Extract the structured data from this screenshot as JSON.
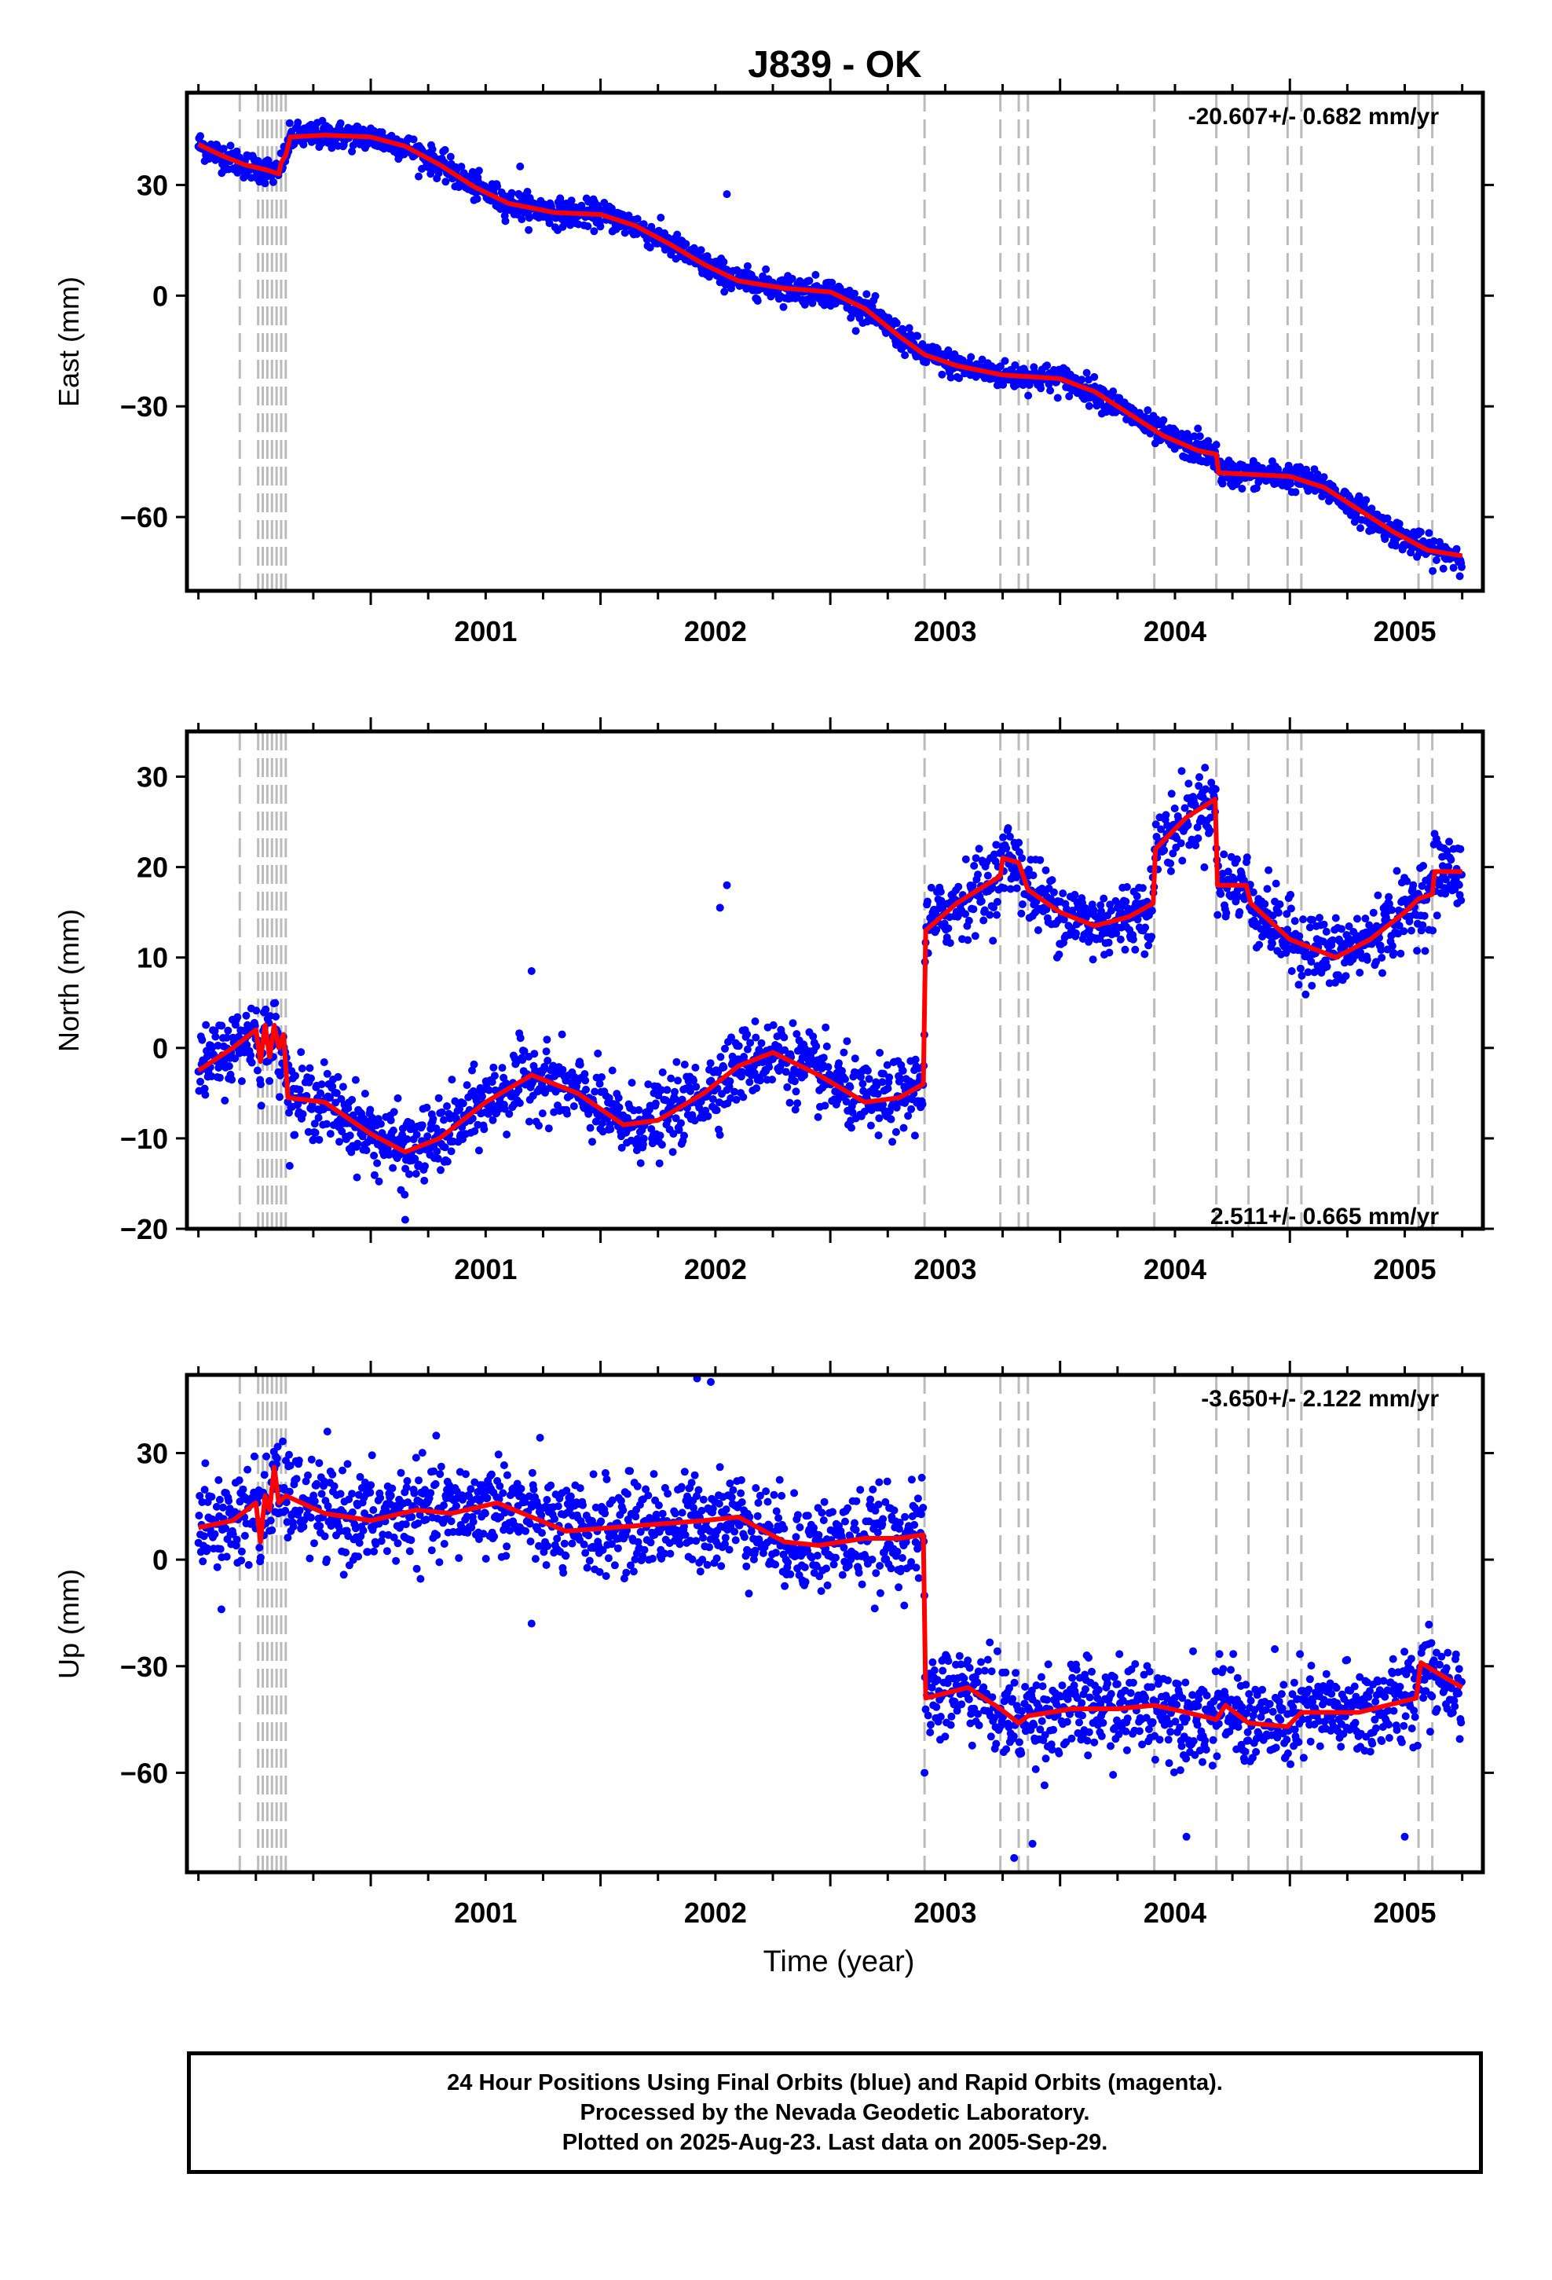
{
  "title": "J839 - OK",
  "xlabel": "Time (year)",
  "colors": {
    "points": "#0000ff",
    "model": "#ff0000",
    "breaks": "#bbbbbb",
    "frame": "#000000"
  },
  "footer": {
    "line1": "24 Hour Positions Using Final Orbits (blue) and Rapid Orbits (magenta).",
    "line2": "Processed by the Nevada Geodetic Laboratory.",
    "line3": "Plotted on 2025-Aug-23. Last data on 2005-Sep-29."
  },
  "chart_data": [
    {
      "type": "scatter",
      "component": "east",
      "ylabel": "East (mm)",
      "rate_label": "-20.607+/- 0.682 mm/yr",
      "xlim": [
        2000.2,
        2005.84
      ],
      "ylim": [
        -80,
        55
      ],
      "yticks": [
        30,
        0,
        -30,
        -60
      ],
      "xticks": [
        2001,
        2002,
        2003,
        2004,
        2005
      ],
      "break_epochs": [
        2000.43,
        2000.51,
        2000.53,
        2000.55,
        2000.57,
        2000.59,
        2000.61,
        2000.63,
        2003.41,
        2003.74,
        2003.82,
        2003.86,
        2004.41,
        2004.68,
        2004.82,
        2004.99,
        2005.05,
        2005.56,
        2005.62
      ],
      "noise_mm": 1.8,
      "model": [
        [
          2000.25,
          41
        ],
        [
          2000.35,
          38
        ],
        [
          2000.45,
          35.5
        ],
        [
          2000.55,
          34
        ],
        [
          2000.6,
          33
        ],
        [
          2000.61,
          36
        ],
        [
          2000.63,
          38
        ],
        [
          2000.65,
          43
        ],
        [
          2000.8,
          43.5
        ],
        [
          2001.0,
          43
        ],
        [
          2001.15,
          40.5
        ],
        [
          2001.3,
          35.5
        ],
        [
          2001.45,
          29.5
        ],
        [
          2001.6,
          25
        ],
        [
          2001.8,
          22.5
        ],
        [
          2002.0,
          22
        ],
        [
          2002.15,
          19
        ],
        [
          2002.3,
          14
        ],
        [
          2002.45,
          8.5
        ],
        [
          2002.6,
          4
        ],
        [
          2002.8,
          2
        ],
        [
          2003.0,
          1
        ],
        [
          2003.15,
          -3.5
        ],
        [
          2003.3,
          -11
        ],
        [
          2003.41,
          -16
        ],
        [
          2003.55,
          -19
        ],
        [
          2003.75,
          -21.5
        ],
        [
          2004.0,
          -22.5
        ],
        [
          2004.15,
          -26
        ],
        [
          2004.3,
          -32
        ],
        [
          2004.45,
          -38
        ],
        [
          2004.6,
          -42
        ],
        [
          2004.68,
          -43
        ],
        [
          2004.69,
          -48
        ],
        [
          2004.85,
          -48.5
        ],
        [
          2005.0,
          -49
        ],
        [
          2005.15,
          -52
        ],
        [
          2005.3,
          -58
        ],
        [
          2005.45,
          -64
        ],
        [
          2005.6,
          -69
        ],
        [
          2005.75,
          -70.5
        ]
      ],
      "outliers": [
        [
          2002.55,
          27.5
        ],
        [
          2001.65,
          35
        ],
        [
          2004.6,
          -36
        ]
      ]
    },
    {
      "type": "scatter",
      "component": "north",
      "ylabel": "North (mm)",
      "rate_label": "2.511+/- 0.665 mm/yr",
      "xlim": [
        2000.2,
        2005.84
      ],
      "ylim": [
        -20,
        35
      ],
      "yticks": [
        30,
        20,
        10,
        0,
        -10,
        -20
      ],
      "xticks": [
        2001,
        2002,
        2003,
        2004,
        2005
      ],
      "break_epochs": [
        2000.43,
        2000.51,
        2000.53,
        2000.55,
        2000.57,
        2000.59,
        2000.61,
        2000.63,
        2003.41,
        2003.74,
        2003.82,
        2003.86,
        2004.41,
        2004.68,
        2004.82,
        2004.99,
        2005.05,
        2005.56,
        2005.62
      ],
      "noise_mm": 2.0,
      "model": [
        [
          2000.25,
          -2.5
        ],
        [
          2000.4,
          0
        ],
        [
          2000.5,
          2
        ],
        [
          2000.52,
          -1.5
        ],
        [
          2000.54,
          2.5
        ],
        [
          2000.56,
          -1
        ],
        [
          2000.58,
          2.5
        ],
        [
          2000.6,
          0
        ],
        [
          2000.62,
          1.5
        ],
        [
          2000.64,
          -5.5
        ],
        [
          2000.8,
          -6
        ],
        [
          2001.0,
          -9.5
        ],
        [
          2001.15,
          -11.5
        ],
        [
          2001.3,
          -10
        ],
        [
          2001.5,
          -6
        ],
        [
          2001.7,
          -3
        ],
        [
          2001.9,
          -5
        ],
        [
          2002.1,
          -8.5
        ],
        [
          2002.25,
          -8
        ],
        [
          2002.45,
          -5
        ],
        [
          2002.6,
          -2
        ],
        [
          2002.75,
          -0.5
        ],
        [
          2002.95,
          -3
        ],
        [
          2003.15,
          -6
        ],
        [
          2003.3,
          -5.5
        ],
        [
          2003.405,
          -4
        ],
        [
          2003.415,
          13
        ],
        [
          2003.55,
          16
        ],
        [
          2003.74,
          19
        ],
        [
          2003.75,
          21
        ],
        [
          2003.82,
          20.5
        ],
        [
          2003.86,
          17.5
        ],
        [
          2004.0,
          15
        ],
        [
          2004.15,
          13.5
        ],
        [
          2004.3,
          14.5
        ],
        [
          2004.405,
          16
        ],
        [
          2004.415,
          22
        ],
        [
          2004.55,
          25.5
        ],
        [
          2004.675,
          27.5
        ],
        [
          2004.685,
          18
        ],
        [
          2004.81,
          18
        ],
        [
          2004.83,
          16
        ],
        [
          2005.0,
          12
        ],
        [
          2005.2,
          10
        ],
        [
          2005.35,
          12
        ],
        [
          2005.5,
          15
        ],
        [
          2005.56,
          16.5
        ],
        [
          2005.62,
          17
        ],
        [
          2005.63,
          19.5
        ],
        [
          2005.75,
          19.5
        ]
      ],
      "outliers": [
        [
          2002.55,
          18
        ],
        [
          2002.52,
          15.5
        ],
        [
          2001.7,
          8.5
        ],
        [
          2001.15,
          -19
        ]
      ]
    },
    {
      "type": "scatter",
      "component": "up",
      "ylabel": "Up (mm)",
      "rate_label": "-3.650+/- 2.122 mm/yr",
      "xlim": [
        2000.2,
        2005.84
      ],
      "ylim": [
        -88,
        52
      ],
      "yticks": [
        30,
        0,
        -30,
        -60
      ],
      "xticks": [
        2001,
        2002,
        2003,
        2004,
        2005
      ],
      "break_epochs": [
        2000.43,
        2000.51,
        2000.53,
        2000.55,
        2000.57,
        2000.59,
        2000.61,
        2000.63,
        2003.41,
        2003.74,
        2003.82,
        2003.86,
        2004.41,
        2004.68,
        2004.82,
        2004.99,
        2005.05,
        2005.56,
        2005.62
      ],
      "noise_mm": 6.5,
      "model": [
        [
          2000.25,
          9
        ],
        [
          2000.4,
          11
        ],
        [
          2000.5,
          16
        ],
        [
          2000.52,
          5
        ],
        [
          2000.54,
          18
        ],
        [
          2000.56,
          14
        ],
        [
          2000.58,
          26
        ],
        [
          2000.6,
          16
        ],
        [
          2000.63,
          18
        ],
        [
          2000.8,
          13
        ],
        [
          2001.0,
          11
        ],
        [
          2001.2,
          14
        ],
        [
          2001.35,
          13
        ],
        [
          2001.55,
          16
        ],
        [
          2001.7,
          12
        ],
        [
          2001.85,
          8
        ],
        [
          2002.05,
          9
        ],
        [
          2002.25,
          10
        ],
        [
          2002.45,
          11
        ],
        [
          2002.6,
          12
        ],
        [
          2002.8,
          5
        ],
        [
          2002.95,
          4
        ],
        [
          2003.15,
          6
        ],
        [
          2003.3,
          6
        ],
        [
          2003.405,
          7
        ],
        [
          2003.415,
          -39
        ],
        [
          2003.6,
          -36
        ],
        [
          2003.74,
          -42
        ],
        [
          2003.82,
          -46
        ],
        [
          2003.86,
          -44
        ],
        [
          2004.05,
          -42
        ],
        [
          2004.25,
          -42
        ],
        [
          2004.41,
          -41
        ],
        [
          2004.55,
          -43
        ],
        [
          2004.68,
          -45
        ],
        [
          2004.72,
          -41
        ],
        [
          2004.82,
          -46
        ],
        [
          2004.99,
          -47
        ],
        [
          2005.05,
          -43
        ],
        [
          2005.3,
          -43
        ],
        [
          2005.55,
          -39
        ],
        [
          2005.57,
          -29
        ],
        [
          2005.62,
          -31
        ],
        [
          2005.75,
          -36
        ]
      ],
      "outliers": [
        [
          2002.48,
          50
        ],
        [
          2002.42,
          51
        ],
        [
          2003.8,
          -84
        ],
        [
          2004.55,
          -78
        ],
        [
          2005.5,
          -78
        ],
        [
          2003.88,
          -80
        ],
        [
          2000.35,
          -14
        ],
        [
          2003.41,
          -60
        ],
        [
          2001.7,
          -18
        ]
      ]
    }
  ]
}
